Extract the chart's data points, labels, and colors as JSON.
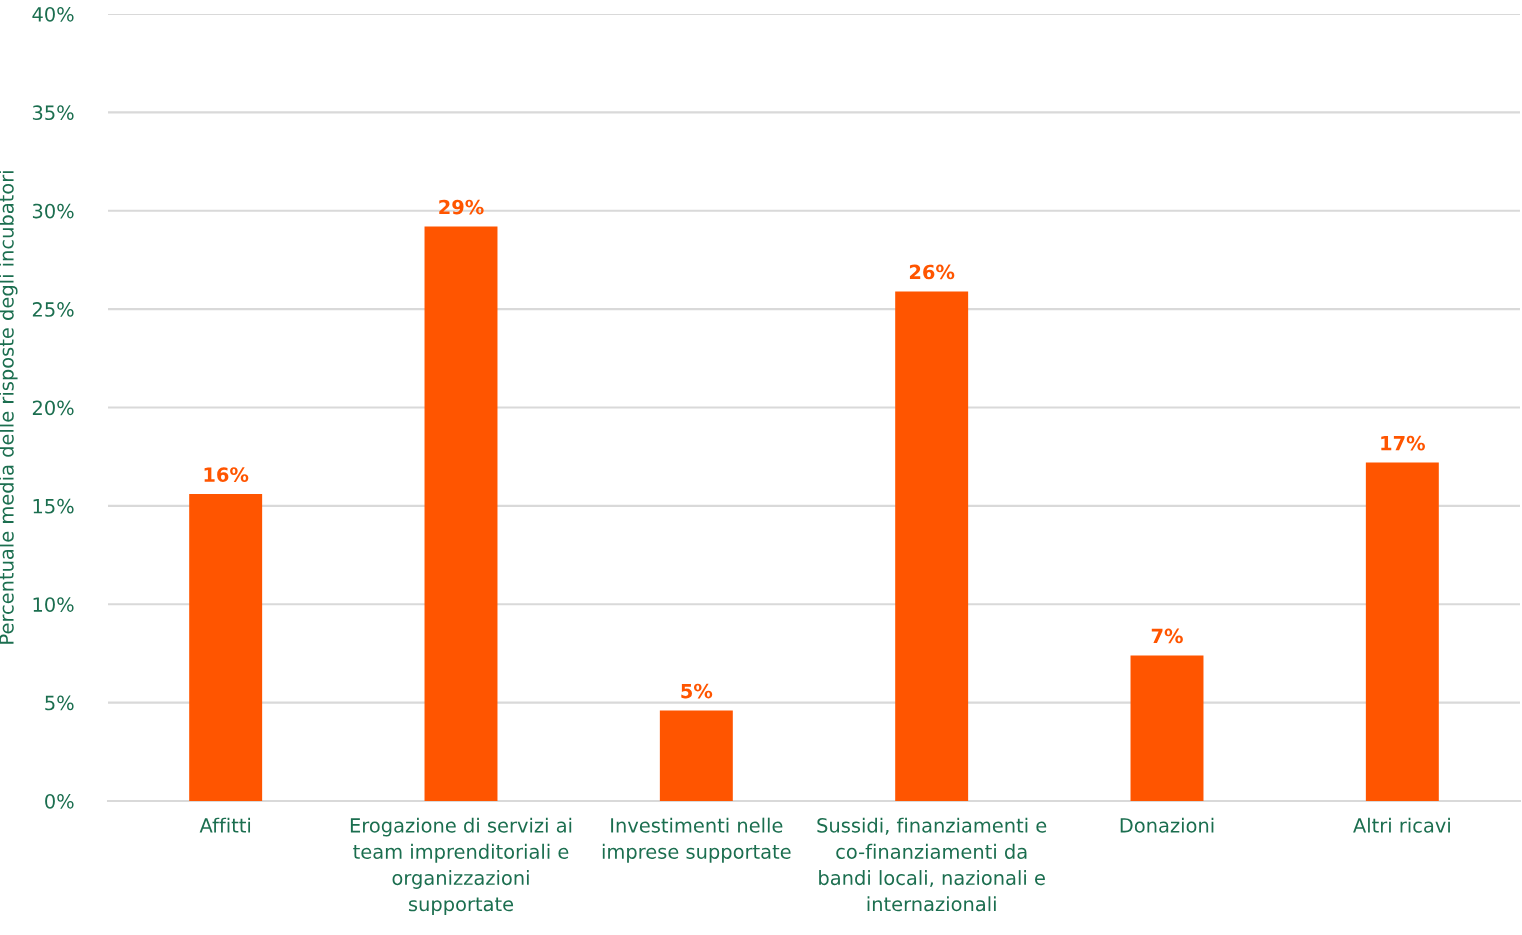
{
  "chart_data": {
    "type": "bar",
    "ylabel": "Percentuale media delle risposte degli incubatori",
    "categories": [
      "Affitti",
      "Erogazione di servizi ai\nteam imprenditoriali e\norganizzazioni\nsupportate",
      "Investimenti nelle\nimprese supportate",
      "Sussidi, finanziamenti e\nco-finanziamenti da\nbandi locali, nazionali e\ninternazionali",
      "Donazioni",
      "Altri ricavi"
    ],
    "values": [
      15.6,
      29.2,
      4.6,
      25.9,
      7.4,
      17.2
    ],
    "value_labels": [
      "16%",
      "29%",
      "5%",
      "26%",
      "7%",
      "17%"
    ],
    "color": "#ff5500",
    "ylim": [
      0,
      40
    ],
    "yticks": [
      {
        "value": 0,
        "label": "0%"
      },
      {
        "value": 5,
        "label": "5%"
      },
      {
        "value": 10,
        "label": "10%"
      },
      {
        "value": 15,
        "label": "15%"
      },
      {
        "value": 20,
        "label": "20%"
      },
      {
        "value": 25,
        "label": "25%"
      },
      {
        "value": 30,
        "label": "30%"
      },
      {
        "value": 35,
        "label": "35%"
      },
      {
        "value": 40,
        "label": "40%"
      }
    ],
    "grid": "y"
  }
}
